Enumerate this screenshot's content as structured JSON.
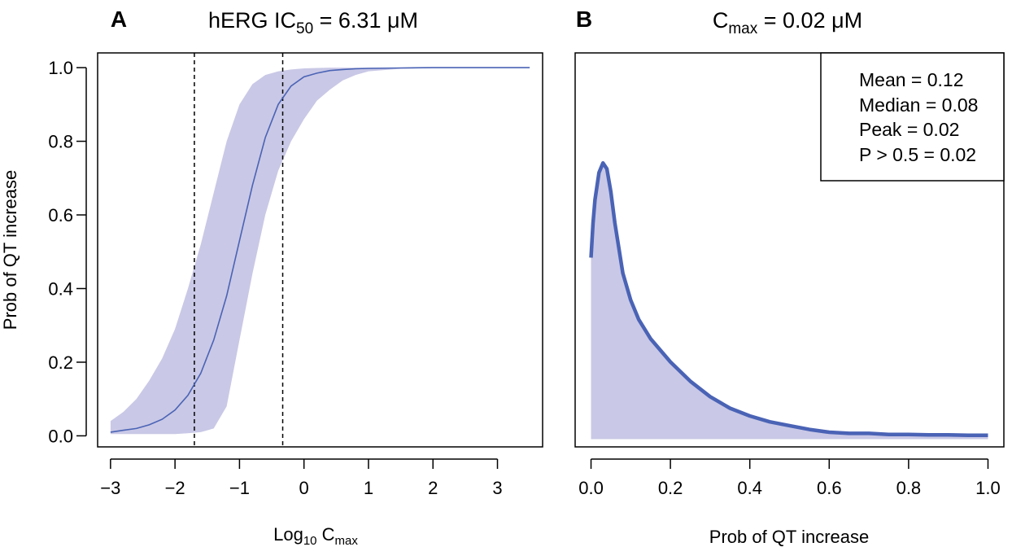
{
  "chart_data": [
    {
      "panel": "A",
      "type": "line",
      "title_parts": [
        "hERG IC",
        "50",
        " = 6.31 μM"
      ],
      "xlabel_parts": [
        "Log",
        "10",
        " C",
        "max"
      ],
      "ylabel": "Prob of QT increase",
      "xlim": [
        -3.2,
        3.7
      ],
      "ylim": [
        -0.03,
        1.04
      ],
      "xticks": [
        -3,
        -2,
        -1,
        0,
        1,
        2,
        3
      ],
      "xtick_labels": [
        "−3",
        "−2",
        "−1",
        "0",
        "1",
        "2",
        "3"
      ],
      "yticks": [
        0.0,
        0.2,
        0.4,
        0.6,
        0.8,
        1.0
      ],
      "ytick_labels": [
        "0.0",
        "0.2",
        "0.4",
        "0.6",
        "0.8",
        "1.0"
      ],
      "vlines": [
        -1.7,
        -0.33
      ],
      "series": [
        {
          "x": [
            -3.0,
            -2.8,
            -2.6,
            -2.4,
            -2.2,
            -2.0,
            -1.8,
            -1.6,
            -1.4,
            -1.2,
            -1.0,
            -0.8,
            -0.6,
            -0.4,
            -0.2,
            0.0,
            0.2,
            0.4,
            0.6,
            0.8,
            1.0,
            1.5,
            2.0,
            2.5,
            3.0,
            3.5
          ],
          "y": [
            0.01,
            0.015,
            0.02,
            0.03,
            0.045,
            0.07,
            0.11,
            0.17,
            0.26,
            0.38,
            0.53,
            0.68,
            0.81,
            0.9,
            0.95,
            0.975,
            0.985,
            0.992,
            0.995,
            0.997,
            0.998,
            0.999,
            1.0,
            1.0,
            1.0,
            1.0
          ],
          "lower": [
            0.005,
            0.005,
            0.005,
            0.005,
            0.005,
            0.005,
            0.007,
            0.01,
            0.02,
            0.08,
            0.26,
            0.44,
            0.6,
            0.72,
            0.8,
            0.86,
            0.91,
            0.94,
            0.965,
            0.98,
            0.99,
            0.997,
            0.999,
            1.0,
            1.0,
            1.0
          ],
          "upper": [
            0.04,
            0.065,
            0.1,
            0.15,
            0.21,
            0.29,
            0.4,
            0.52,
            0.66,
            0.8,
            0.9,
            0.955,
            0.98,
            0.99,
            0.995,
            0.998,
            0.999,
            1.0,
            1.0,
            1.0,
            1.0,
            1.0,
            1.0,
            1.0,
            1.0,
            1.0
          ]
        }
      ],
      "colors": {
        "line": "#4a63b5",
        "band": "#c9c8e6"
      }
    },
    {
      "panel": "B",
      "type": "area",
      "title_parts": [
        "C",
        "max",
        " = 0.02 μM"
      ],
      "xlabel": "Prob of QT increase",
      "xlim": [
        -0.04,
        1.04
      ],
      "ylim": [
        -0.02,
        1.0
      ],
      "xticks": [
        0.0,
        0.2,
        0.4,
        0.6,
        0.8,
        1.0
      ],
      "xtick_labels": [
        "0.0",
        "0.2",
        "0.4",
        "0.6",
        "0.8",
        "1.0"
      ],
      "series": [
        {
          "x": [
            0.0,
            0.005,
            0.01,
            0.02,
            0.03,
            0.04,
            0.05,
            0.06,
            0.08,
            0.1,
            0.12,
            0.15,
            0.2,
            0.25,
            0.3,
            0.35,
            0.4,
            0.45,
            0.5,
            0.55,
            0.6,
            0.65,
            0.7,
            0.75,
            0.8,
            0.85,
            0.9,
            0.95,
            1.0
          ],
          "y": [
            0.47,
            0.56,
            0.62,
            0.69,
            0.715,
            0.7,
            0.64,
            0.56,
            0.43,
            0.36,
            0.31,
            0.26,
            0.2,
            0.15,
            0.11,
            0.08,
            0.06,
            0.045,
            0.035,
            0.025,
            0.018,
            0.015,
            0.015,
            0.012,
            0.012,
            0.011,
            0.011,
            0.01,
            0.01
          ]
        }
      ],
      "stats": [
        "Mean = 0.12",
        "Median = 0.08",
        "Peak = 0.02",
        "P > 0.5 = 0.02"
      ],
      "colors": {
        "line": "#4a63b5",
        "fill": "#c9c8e6"
      }
    }
  ]
}
